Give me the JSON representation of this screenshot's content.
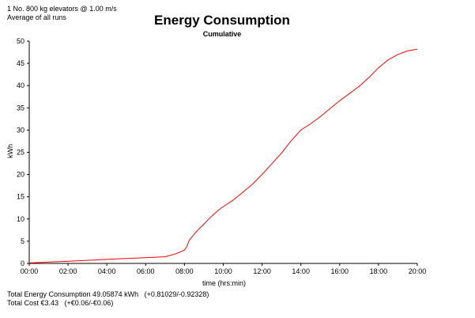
{
  "header": {
    "note_line1": "1 No. 800 kg elevators @ 1.00 m/s",
    "note_line2": "Average of all runs"
  },
  "footer": {
    "energy_line": "Total Energy Consumption 49.05874 kWh   (+0.81029/-0.92328)",
    "cost_line": "Total Cost €3.43   (+€0.06/-€0.06)"
  },
  "chart_data": {
    "type": "line",
    "title": "Energy Consumption",
    "subtitle": "Cumulative",
    "xlabel": "time (hrs:min)",
    "ylabel": "kWh",
    "xlim": [
      0,
      20
    ],
    "ylim": [
      0,
      50
    ],
    "x_ticks": [
      "00:00",
      "02:00",
      "04:00",
      "06:00",
      "08:00",
      "10:00",
      "12:00",
      "14:00",
      "16:00",
      "18:00",
      "20:00"
    ],
    "y_ticks": [
      0,
      5,
      10,
      15,
      20,
      25,
      30,
      35,
      40,
      45,
      50
    ],
    "grid": false,
    "line_color": "#ff0000",
    "series": [
      {
        "x": [
          0,
          0.5,
          1,
          2,
          3,
          4,
          5,
          6,
          6.5,
          7,
          7.25,
          7.5,
          7.75,
          8,
          8.1,
          8.25,
          8.5,
          8.75,
          9,
          9.25,
          9.5,
          9.75,
          10,
          10.5,
          11,
          11.5,
          12,
          12.5,
          13,
          13.5,
          14,
          14.5,
          15,
          15.5,
          16,
          16.5,
          17,
          17.5,
          18,
          18.5,
          19,
          19.5,
          20
        ],
        "y": [
          0.1,
          0.2,
          0.3,
          0.5,
          0.7,
          0.9,
          1.1,
          1.3,
          1.4,
          1.5,
          1.8,
          2.1,
          2.5,
          3.0,
          3.6,
          5.2,
          6.6,
          7.8,
          8.8,
          10.0,
          11.0,
          12.0,
          12.8,
          14.2,
          16.0,
          17.8,
          20.0,
          22.4,
          24.8,
          27.6,
          30.0,
          31.4,
          33.0,
          34.8,
          36.6,
          38.2,
          39.8,
          41.8,
          44.0,
          45.8,
          47.0,
          47.8,
          48.2
        ]
      }
    ]
  }
}
